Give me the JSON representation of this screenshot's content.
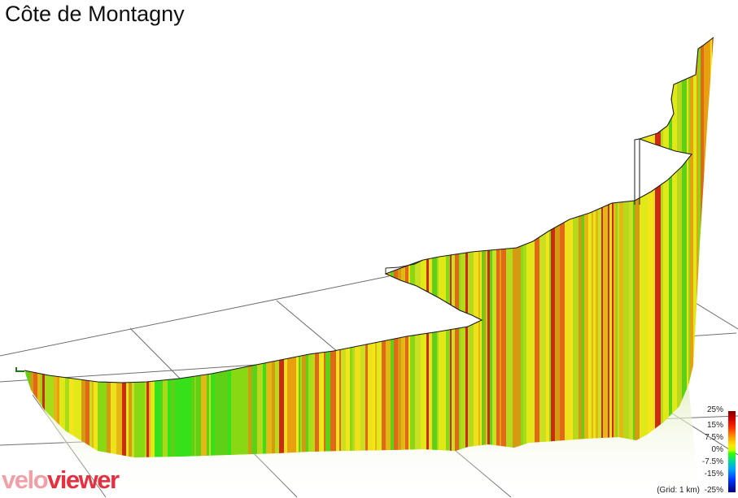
{
  "title": "Côte de Montagny",
  "legend": {
    "labels": [
      "25%",
      "15%",
      "7.5%",
      "0%",
      "-7.5%",
      "-15%",
      "-25%"
    ],
    "grid_note": "(Grid: 1 km)"
  },
  "logo": {
    "text": "veloviewer",
    "part1": "velo",
    "part2": "viewer",
    "part1_color": "#f2a0a8",
    "part2_color": "#e4303f"
  },
  "colors": {
    "grid_line": "#6e6e6e",
    "profile_outline": "#1a1a1a",
    "steep": "#cc2a12",
    "moderate": "#e8a010",
    "gentle": "#d8e818",
    "flat": "#36e01a",
    "reflection": "#eef5d8"
  }
}
